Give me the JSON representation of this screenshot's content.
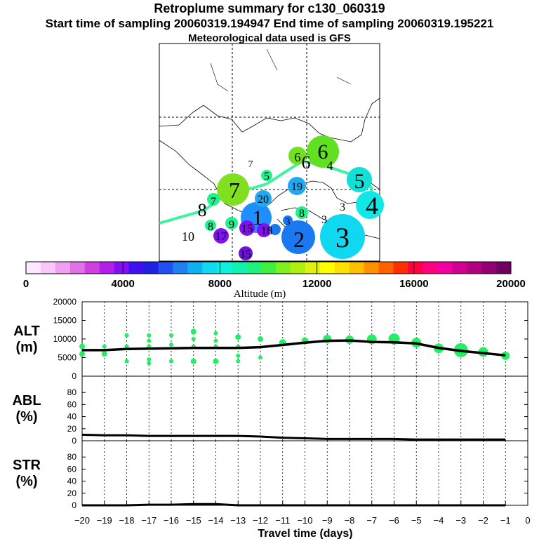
{
  "header": {
    "title": "Retroplume summary for c130_060319",
    "sampling": "Start time of sampling 20060319.194947     End time of sampling 20060319.195221",
    "met": "Meteorological data used is GFS"
  },
  "colors": {
    "bar_stops": [
      "#ffe8ff",
      "#f8c8f8",
      "#f0a0f0",
      "#e070e8",
      "#d040e0",
      "#b020e8",
      "#8010f0",
      "#4010f0",
      "#2020e0",
      "#2050f0",
      "#2080f0",
      "#10b0f0",
      "#10d8f0",
      "#10f0e0",
      "#10f0b0",
      "#20f080",
      "#40f040",
      "#80f020",
      "#b0f010",
      "#e0f010",
      "#ffff00",
      "#ffe000",
      "#ffc000",
      "#ff9000",
      "#ff6000",
      "#ff3000",
      "#ff0040",
      "#ff0080",
      "#f000a0",
      "#d00090",
      "#b00080",
      "#900070",
      "#700060"
    ],
    "marker_green": "#22ee66",
    "line": "#000000"
  },
  "map": {
    "markers": [
      {
        "label": "1",
        "color": "#1f8fff"
      },
      {
        "label": "2",
        "color": "#1a78f0"
      },
      {
        "label": "3",
        "color": "#10d8f0"
      },
      {
        "label": "4",
        "color": "#10e8e8"
      },
      {
        "label": "5",
        "color": "#10e0d8"
      },
      {
        "label": "6",
        "color": "#70e020"
      },
      {
        "label": "7",
        "color": "#80e020"
      },
      {
        "label": "8",
        "color": "#ffffff"
      },
      {
        "label": "9",
        "color": "#20f090"
      },
      {
        "label": "10",
        "color": "#ffffff"
      },
      {
        "label": "15",
        "color": "#8010f0"
      },
      {
        "label": "17",
        "color": "#8010f0"
      },
      {
        "label": "18",
        "color": "#8010f0"
      },
      {
        "label": "19",
        "color": "#20a8f0"
      },
      {
        "label": "20",
        "color": "#20a8f0"
      }
    ]
  },
  "colorbar": {
    "ticks": [
      "0",
      "4000",
      "8000",
      "12000",
      "16000",
      "20000"
    ],
    "label": "Altitude (m)"
  },
  "chart_data": [
    {
      "type": "scatter",
      "title": "ALT (m)",
      "ylabel_line1": "ALT",
      "ylabel_line2": "(m)",
      "ylim": [
        0,
        20000
      ],
      "yticks": [
        "0",
        "5000",
        "10000",
        "15000",
        "20000"
      ],
      "x": [
        -20,
        -19,
        -18,
        -17,
        -16,
        -15,
        -14,
        -13,
        -12,
        -11,
        -10,
        -9,
        -8,
        -7,
        -6,
        -5,
        -4,
        -3,
        -2,
        -1
      ],
      "mean_line": [
        7000,
        7000,
        7300,
        7400,
        7500,
        7600,
        7600,
        7600,
        7800,
        8400,
        9000,
        9500,
        9600,
        9200,
        9100,
        8800,
        7600,
        6800,
        6200,
        5600
      ],
      "points": [
        {
          "x": -20,
          "y": 8000,
          "s": 4
        },
        {
          "x": -20,
          "y": 6000,
          "s": 4
        },
        {
          "x": -19,
          "y": 8000,
          "s": 3
        },
        {
          "x": -19,
          "y": 6000,
          "s": 4
        },
        {
          "x": -18,
          "y": 11000,
          "s": 3
        },
        {
          "x": -18,
          "y": 8000,
          "s": 3
        },
        {
          "x": -18,
          "y": 4000,
          "s": 3
        },
        {
          "x": -17,
          "y": 11000,
          "s": 3
        },
        {
          "x": -17,
          "y": 9500,
          "s": 3
        },
        {
          "x": -17,
          "y": 8000,
          "s": 3
        },
        {
          "x": -17,
          "y": 4500,
          "s": 3
        },
        {
          "x": -17,
          "y": 3500,
          "s": 3
        },
        {
          "x": -16,
          "y": 11000,
          "s": 3
        },
        {
          "x": -16,
          "y": 8500,
          "s": 3
        },
        {
          "x": -16,
          "y": 4000,
          "s": 3
        },
        {
          "x": -15,
          "y": 12000,
          "s": 4
        },
        {
          "x": -15,
          "y": 10000,
          "s": 3
        },
        {
          "x": -15,
          "y": 8000,
          "s": 3
        },
        {
          "x": -15,
          "y": 4000,
          "s": 4
        },
        {
          "x": -14,
          "y": 11500,
          "s": 3
        },
        {
          "x": -14,
          "y": 9500,
          "s": 3
        },
        {
          "x": -14,
          "y": 8000,
          "s": 3
        },
        {
          "x": -14,
          "y": 4000,
          "s": 4
        },
        {
          "x": -13,
          "y": 10500,
          "s": 4
        },
        {
          "x": -13,
          "y": 8000,
          "s": 3
        },
        {
          "x": -13,
          "y": 5500,
          "s": 3
        },
        {
          "x": -13,
          "y": 4000,
          "s": 3
        },
        {
          "x": -12,
          "y": 10000,
          "s": 4
        },
        {
          "x": -12,
          "y": 5000,
          "s": 3
        },
        {
          "x": -11,
          "y": 9000,
          "s": 5
        },
        {
          "x": -11,
          "y": 4500,
          "s": 1
        },
        {
          "x": -10,
          "y": 9500,
          "s": 5
        },
        {
          "x": -10,
          "y": 3500,
          "s": 1
        },
        {
          "x": -9,
          "y": 10000,
          "s": 6
        },
        {
          "x": -9,
          "y": 4500,
          "s": 1
        },
        {
          "x": -8,
          "y": 9800,
          "s": 6
        },
        {
          "x": -8,
          "y": 2000,
          "s": 1
        },
        {
          "x": -7,
          "y": 9900,
          "s": 7
        },
        {
          "x": -7,
          "y": 2000,
          "s": 1
        },
        {
          "x": -6,
          "y": 10000,
          "s": 8
        },
        {
          "x": -6,
          "y": 2000,
          "s": 1
        },
        {
          "x": -5,
          "y": 9000,
          "s": 7
        },
        {
          "x": -5,
          "y": 3000,
          "s": 1
        },
        {
          "x": -4,
          "y": 7500,
          "s": 7
        },
        {
          "x": -3,
          "y": 7000,
          "s": 10
        },
        {
          "x": -2,
          "y": 6500,
          "s": 7
        },
        {
          "x": -1,
          "y": 5500,
          "s": 6
        },
        {
          "x": -1,
          "y": 3000,
          "s": 1
        }
      ]
    },
    {
      "type": "line",
      "title": "ABL (%)",
      "ylabel_line1": "ABL",
      "ylabel_line2": "(%)",
      "ylim": [
        0,
        100
      ],
      "yticks": [
        "0",
        "20",
        "40",
        "60",
        "80"
      ],
      "x": [
        -20,
        -19,
        -18,
        -17,
        -16,
        -15,
        -14,
        -13,
        -12,
        -11,
        -10,
        -9,
        -8,
        -7,
        -6,
        -5,
        -4,
        -3,
        -2,
        -1
      ],
      "values": [
        10,
        9,
        9,
        8,
        8,
        8,
        8,
        8,
        7,
        5,
        4,
        3,
        3,
        3,
        3,
        2,
        2,
        2,
        2,
        2
      ]
    },
    {
      "type": "line",
      "title": "STR (%)",
      "ylabel_line1": "STR",
      "ylabel_line2": "(%)",
      "ylim": [
        0,
        100
      ],
      "yticks": [
        "0",
        "20",
        "40",
        "60",
        "80"
      ],
      "x": [
        -20,
        -19,
        -18,
        -17,
        -16,
        -15,
        -14,
        -13,
        -12,
        -11,
        -10,
        -9,
        -8,
        -7,
        -6,
        -5,
        -4,
        -3,
        -2,
        -1
      ],
      "values": [
        0,
        0,
        0,
        1,
        1,
        2,
        2,
        0,
        0,
        0,
        0,
        0,
        0,
        0,
        0,
        0,
        0,
        0,
        0,
        0
      ]
    }
  ],
  "xaxis": {
    "ticks": [
      "−20",
      "−19",
      "−18",
      "−17",
      "−16",
      "−15",
      "−14",
      "−13",
      "−12",
      "−11",
      "−10",
      "−9",
      "−8",
      "−7",
      "−6",
      "−5",
      "−4",
      "−3",
      "−2",
      "−1",
      "0"
    ],
    "label": "Travel time (days)"
  }
}
